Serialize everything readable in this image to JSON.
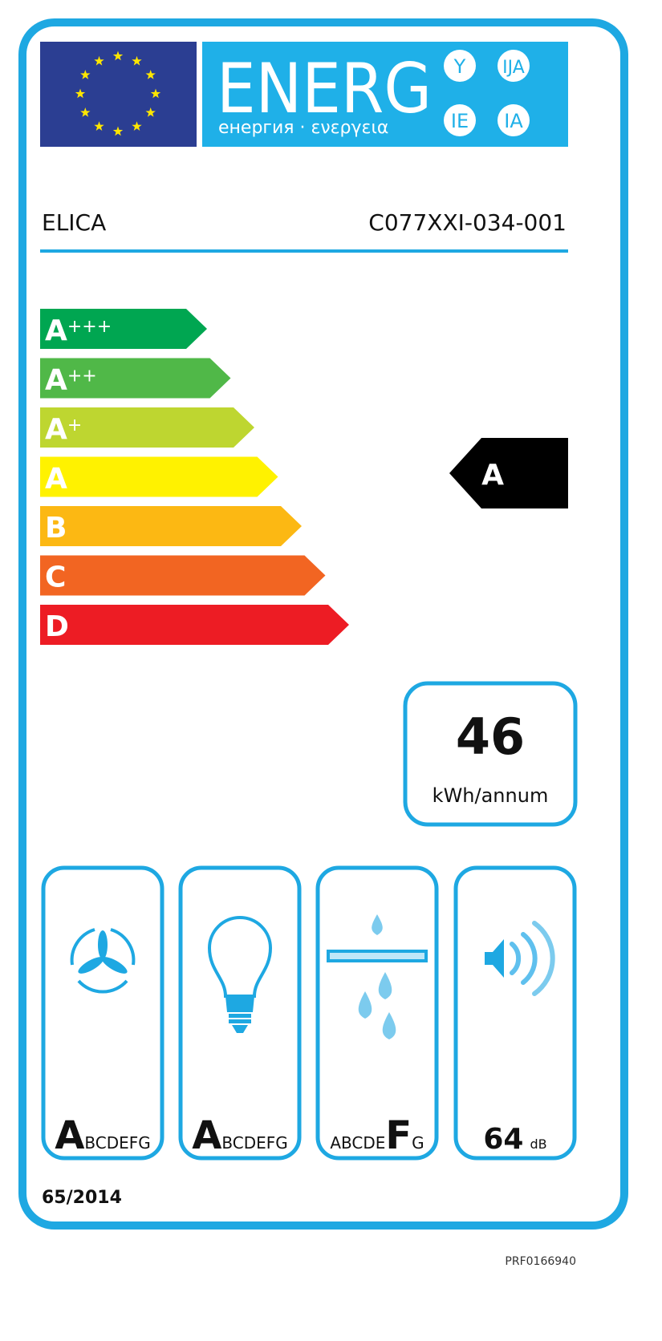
{
  "header": {
    "title": "ENERG",
    "subtitle": "енергия · ενεργεια",
    "language_suffixes": [
      "Y",
      "IJA",
      "IE",
      "IA"
    ],
    "flag_icon": "eu-flag-icon"
  },
  "supplier": "ELICA",
  "model": "C077XXI-034-001",
  "scale": [
    {
      "letter": "A",
      "plus": "+++",
      "color": "#00a651"
    },
    {
      "letter": "A",
      "plus": "++",
      "color": "#50b848"
    },
    {
      "letter": "A",
      "plus": "+",
      "color": "#bed630"
    },
    {
      "letter": "A",
      "plus": "",
      "color": "#fff200"
    },
    {
      "letter": "B",
      "plus": "",
      "color": "#fcb813"
    },
    {
      "letter": "C",
      "plus": "",
      "color": "#f26522"
    },
    {
      "letter": "D",
      "plus": "",
      "color": "#ed1c24"
    }
  ],
  "rating": "A",
  "consumption": {
    "value": "46",
    "unit": "kWh/annum"
  },
  "pictograms": [
    {
      "icon": "fan-icon",
      "prefix": "",
      "big": "A",
      "suffix": "BCDEFG"
    },
    {
      "icon": "light-bulb-icon",
      "prefix": "",
      "big": "A",
      "suffix": "BCDEFG"
    },
    {
      "icon": "grease-filter-icon",
      "prefix": "ABCDE",
      "big": "F",
      "suffix": "G"
    },
    {
      "icon": "speaker-icon",
      "value": "64",
      "unit": "dB"
    }
  ],
  "regulation": "65/2014",
  "reference": "PRF0166940",
  "colors": {
    "border": "#1ea8e2",
    "band": "#1fb0e8",
    "flag": "#2b3e92",
    "star": "#ffe600",
    "rating": "#000000"
  }
}
